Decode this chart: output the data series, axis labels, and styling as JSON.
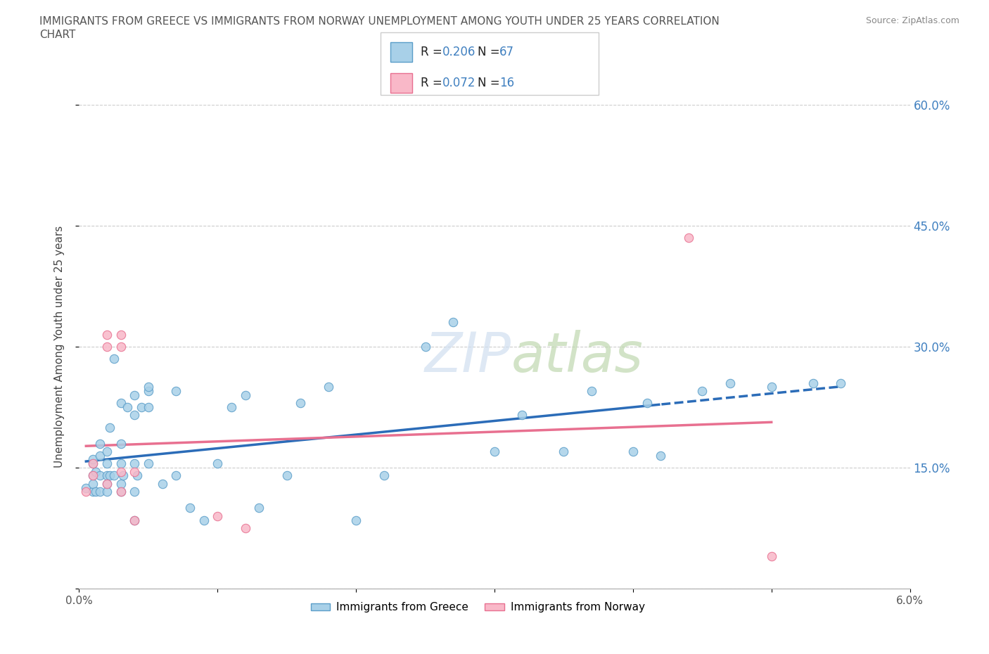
{
  "title_line1": "IMMIGRANTS FROM GREECE VS IMMIGRANTS FROM NORWAY UNEMPLOYMENT AMONG YOUTH UNDER 25 YEARS CORRELATION",
  "title_line2": "CHART",
  "source_text": "Source: ZipAtlas.com",
  "ylabel": "Unemployment Among Youth under 25 years",
  "watermark": "ZIPatlas",
  "xlim": [
    0.0,
    0.06
  ],
  "ylim": [
    0.0,
    0.6
  ],
  "xticks": [
    0.0,
    0.01,
    0.02,
    0.03,
    0.04,
    0.05,
    0.06
  ],
  "yticks": [
    0.0,
    0.15,
    0.3,
    0.45,
    0.6
  ],
  "xtick_labels": [
    "0.0%",
    "",
    "",
    "",
    "",
    "",
    "6.0%"
  ],
  "ytick_labels": [
    "",
    "15.0%",
    "30.0%",
    "45.0%",
    "60.0%"
  ],
  "greece_fill": "#A8D0E8",
  "greece_edge": "#5B9EC9",
  "norway_fill": "#F9B8C8",
  "norway_edge": "#E87090",
  "greece_R": "0.206",
  "greece_N": "67",
  "norway_R": "0.072",
  "norway_N": "16",
  "legend_greece": "Immigrants from Greece",
  "legend_norway": "Immigrants from Norway",
  "trend_blue": "#2B6CB8",
  "trend_pink": "#E87090",
  "label_blue": "#4080C0",
  "greece_scatter_x": [
    0.0005,
    0.001,
    0.001,
    0.001,
    0.001,
    0.001,
    0.0012,
    0.0012,
    0.0015,
    0.0015,
    0.0015,
    0.0015,
    0.002,
    0.002,
    0.002,
    0.002,
    0.002,
    0.0022,
    0.0022,
    0.0025,
    0.0025,
    0.003,
    0.003,
    0.003,
    0.003,
    0.003,
    0.0032,
    0.0035,
    0.004,
    0.004,
    0.004,
    0.004,
    0.004,
    0.0042,
    0.0045,
    0.005,
    0.005,
    0.005,
    0.005,
    0.006,
    0.007,
    0.007,
    0.008,
    0.009,
    0.01,
    0.011,
    0.012,
    0.013,
    0.015,
    0.016,
    0.018,
    0.02,
    0.022,
    0.025,
    0.027,
    0.03,
    0.032,
    0.035,
    0.037,
    0.04,
    0.041,
    0.042,
    0.045,
    0.047,
    0.05,
    0.053,
    0.055
  ],
  "greece_scatter_y": [
    0.125,
    0.12,
    0.14,
    0.155,
    0.16,
    0.13,
    0.12,
    0.145,
    0.12,
    0.14,
    0.165,
    0.18,
    0.13,
    0.14,
    0.12,
    0.17,
    0.155,
    0.14,
    0.2,
    0.285,
    0.14,
    0.12,
    0.13,
    0.23,
    0.155,
    0.18,
    0.14,
    0.225,
    0.155,
    0.12,
    0.085,
    0.215,
    0.24,
    0.14,
    0.225,
    0.155,
    0.225,
    0.245,
    0.25,
    0.13,
    0.14,
    0.245,
    0.1,
    0.085,
    0.155,
    0.225,
    0.24,
    0.1,
    0.14,
    0.23,
    0.25,
    0.085,
    0.14,
    0.3,
    0.33,
    0.17,
    0.215,
    0.17,
    0.245,
    0.17,
    0.23,
    0.165,
    0.245,
    0.255,
    0.25,
    0.255,
    0.255
  ],
  "norway_scatter_x": [
    0.0005,
    0.001,
    0.001,
    0.002,
    0.002,
    0.002,
    0.003,
    0.003,
    0.003,
    0.003,
    0.004,
    0.004,
    0.01,
    0.012,
    0.044,
    0.05
  ],
  "norway_scatter_y": [
    0.12,
    0.14,
    0.155,
    0.13,
    0.3,
    0.315,
    0.12,
    0.145,
    0.3,
    0.315,
    0.145,
    0.085,
    0.09,
    0.075,
    0.435,
    0.04
  ],
  "trend_split_x": 0.042
}
